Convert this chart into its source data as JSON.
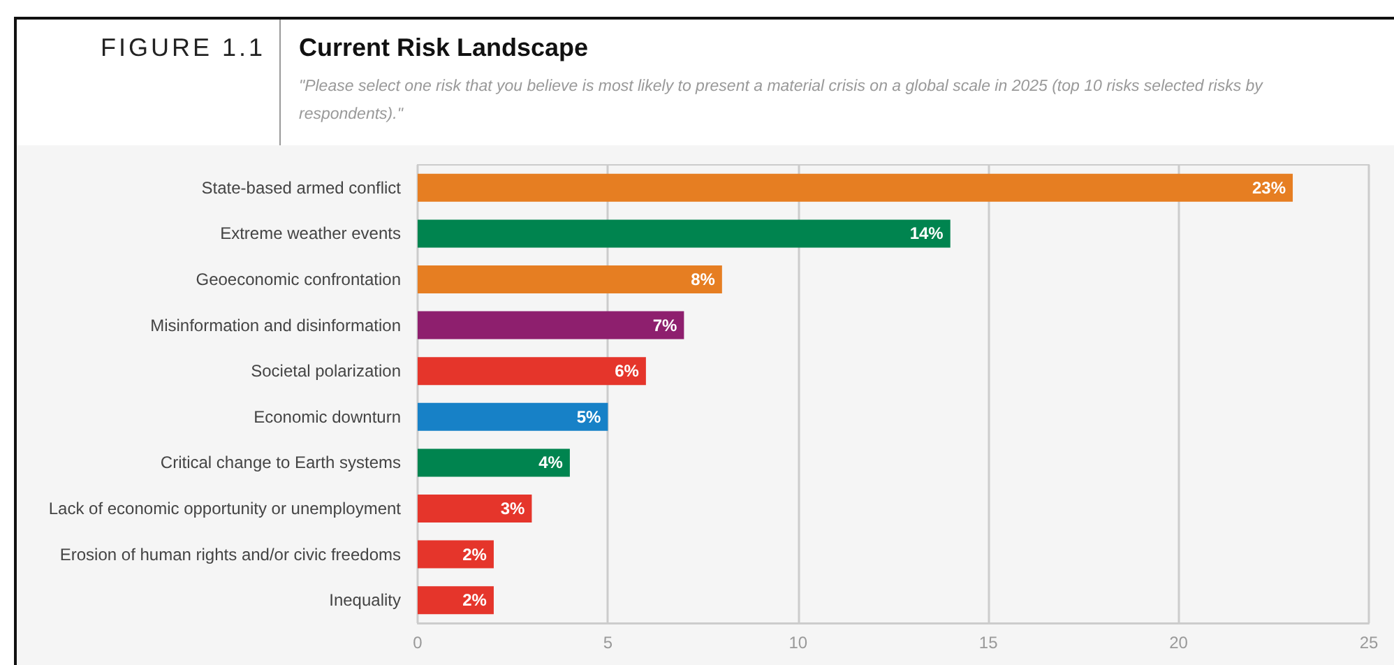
{
  "chart_data": {
    "type": "bar",
    "orientation": "horizontal",
    "title": "Current Risk Landscape",
    "subtitle": "\"Please select one risk that you believe is most likely to present a material crisis on a global scale in 2025 (top 10 risks selected risks by respondents).\"",
    "annotations": [
      "FIGURE 1.1"
    ],
    "categories": [
      "State-based armed conflict",
      "Extreme weather events",
      "Geoeconomic confrontation",
      "Misinformation and disinformation",
      "Societal polarization",
      "Economic downturn",
      "Critical change to Earth systems",
      "Lack of economic opportunity or unemployment",
      "Erosion of human rights and/or civic freedoms",
      "Inequality"
    ],
    "values": [
      23,
      14,
      8,
      7,
      6,
      5,
      4,
      3,
      2,
      2
    ],
    "colors": [
      "#e67e22",
      "#00844f",
      "#e67e22",
      "#8e1f6e",
      "#e5352b",
      "#1781c7",
      "#00844f",
      "#e5352b",
      "#e5352b",
      "#e5352b"
    ],
    "value_labels": [
      "23%",
      "14%",
      "8%",
      "7%",
      "6%",
      "5%",
      "4%",
      "3%",
      "2%",
      "2%"
    ],
    "xlim": [
      0,
      25
    ],
    "xticks": [
      0,
      5,
      10,
      15,
      20,
      25
    ],
    "grid": "x"
  }
}
